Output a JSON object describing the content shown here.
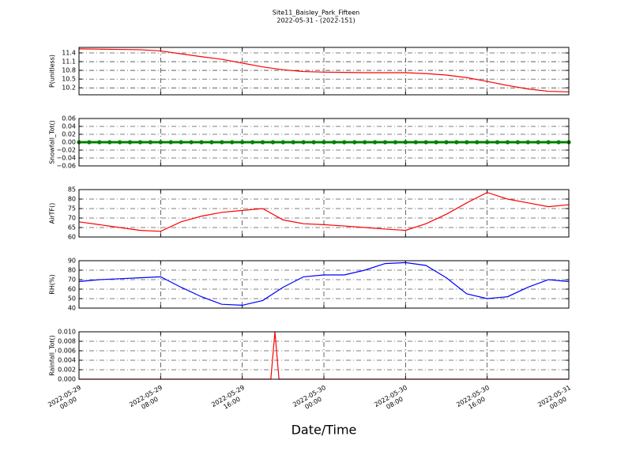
{
  "title": "Site11_Baisley_Park_Fifteen",
  "subtitle": "2022-05-31 - (2022-151)",
  "xlabel": "Date/Time",
  "xlim": [
    0,
    48
  ],
  "xticks": [
    {
      "value": 0,
      "label": "2022-05-29\n00:00"
    },
    {
      "value": 8,
      "label": "2022-05-29\n08:00"
    },
    {
      "value": 16,
      "label": "2022-05-29\n16:00"
    },
    {
      "value": 24,
      "label": "2022-05-30\n00:00"
    },
    {
      "value": 32,
      "label": "2022-05-30\n08:00"
    },
    {
      "value": 40,
      "label": "2022-05-30\n16:00"
    },
    {
      "value": 48,
      "label": "2022-05-31\n00:00"
    }
  ],
  "chart_data": [
    {
      "type": "line",
      "ylabel": "P(unitless)",
      "color": "#ff0000",
      "ylim": [
        9.96,
        11.59
      ],
      "yticks": [
        10.2,
        10.5,
        10.8,
        11.1,
        11.4
      ],
      "x": [
        0,
        2,
        4,
        6,
        8,
        10,
        12,
        14,
        16,
        18,
        20,
        22,
        24,
        26,
        28,
        30,
        32,
        34,
        36,
        38,
        40,
        42,
        44,
        46,
        48
      ],
      "values": [
        11.54,
        11.53,
        11.52,
        11.51,
        11.47,
        11.37,
        11.27,
        11.18,
        11.05,
        10.92,
        10.82,
        10.76,
        10.74,
        10.73,
        10.72,
        10.72,
        10.72,
        10.69,
        10.64,
        10.55,
        10.42,
        10.28,
        10.16,
        10.08,
        10.06
      ]
    },
    {
      "type": "line-marker",
      "ylabel": "Snowfall_Tot()",
      "color": "#008000",
      "ylim": [
        -0.06,
        0.06
      ],
      "yticks": [
        {
          "value": -0.06,
          "label": "−0.06"
        },
        {
          "value": -0.04,
          "label": "−0.04"
        },
        {
          "value": -0.02,
          "label": "−0.02"
        },
        {
          "value": 0,
          "label": "0.00"
        },
        {
          "value": 0.02,
          "label": "0.02"
        },
        {
          "value": 0.04,
          "label": "0.04"
        },
        {
          "value": 0.06,
          "label": "0.06"
        }
      ],
      "x": [
        0,
        1,
        2,
        3,
        4,
        5,
        6,
        7,
        8,
        9,
        10,
        11,
        12,
        13,
        14,
        15,
        16,
        17,
        18,
        19,
        20,
        21,
        22,
        23,
        24,
        25,
        26,
        27,
        28,
        29,
        30,
        31,
        32,
        33,
        34,
        35,
        36,
        37,
        38,
        39,
        40,
        41,
        42,
        43,
        44,
        45,
        46,
        47,
        48
      ],
      "values": [
        0,
        0,
        0,
        0,
        0,
        0,
        0,
        0,
        0,
        0,
        0,
        0,
        0,
        0,
        0,
        0,
        0,
        0,
        0,
        0,
        0,
        0,
        0,
        0,
        0,
        0,
        0,
        0,
        0,
        0,
        0,
        0,
        0,
        0,
        0,
        0,
        0,
        0,
        0,
        0,
        0,
        0,
        0,
        0,
        0,
        0,
        0,
        0,
        0
      ]
    },
    {
      "type": "line",
      "ylabel": "AirTF()",
      "color": "#ff0000",
      "ylim": [
        60,
        85
      ],
      "yticks": [
        60,
        65,
        70,
        75,
        80,
        85
      ],
      "x": [
        0,
        2,
        4,
        6,
        8,
        10,
        12,
        14,
        16,
        18,
        20,
        22,
        24,
        26,
        28,
        30,
        32,
        34,
        36,
        38,
        40,
        42,
        44,
        46,
        48
      ],
      "values": [
        68,
        66.5,
        65,
        63.5,
        63,
        68,
        71,
        73,
        74,
        75,
        69,
        67,
        66.5,
        65.8,
        65,
        64.2,
        63.5,
        67,
        72,
        78,
        83.5,
        80,
        78,
        76,
        77
      ]
    },
    {
      "type": "line",
      "ylabel": "RH(%)",
      "color": "#0000ff",
      "ylim": [
        40,
        90
      ],
      "yticks": [
        40,
        50,
        60,
        70,
        80,
        90
      ],
      "x": [
        0,
        2,
        4,
        6,
        8,
        10,
        12,
        14,
        16,
        18,
        20,
        22,
        24,
        26,
        28,
        30,
        32,
        34,
        36,
        38,
        40,
        42,
        44,
        46,
        48
      ],
      "values": [
        68,
        70,
        71,
        72,
        73,
        62,
        52,
        44,
        43,
        48,
        62,
        73,
        75,
        75,
        80,
        87,
        88,
        85,
        72,
        55,
        50,
        52,
        62,
        70,
        68
      ]
    },
    {
      "type": "line",
      "ylabel": "Rainfall_Tot()",
      "color": "#ff0000",
      "ylim": [
        0,
        0.01
      ],
      "yticks": [
        {
          "value": 0,
          "label": "0.000"
        },
        {
          "value": 0.002,
          "label": "0.002"
        },
        {
          "value": 0.004,
          "label": "0.004"
        },
        {
          "value": 0.006,
          "label": "0.006"
        },
        {
          "value": 0.008,
          "label": "0.008"
        },
        {
          "value": 0.01,
          "label": "0.010"
        }
      ],
      "x": [
        0,
        18.8,
        19.2,
        19.6,
        48
      ],
      "values": [
        0,
        0,
        0.01,
        0,
        0
      ]
    }
  ]
}
